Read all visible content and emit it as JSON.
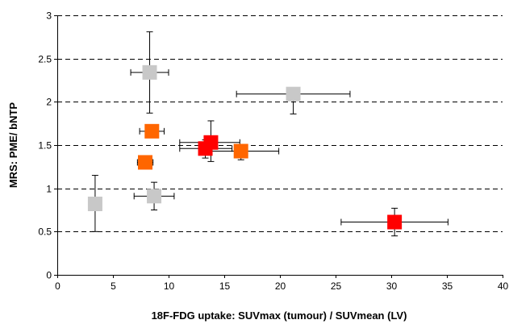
{
  "chart_data": {
    "type": "scatter",
    "xlabel": "18F-FDG uptake: SUVmax (tumour) / SUVmean (LV)",
    "ylabel": "MRS: PME/ bNTP",
    "xlim": [
      0,
      40
    ],
    "ylim": [
      0,
      3
    ],
    "x_ticks": [
      0,
      5,
      10,
      15,
      20,
      25,
      30,
      35,
      40
    ],
    "y_ticks": [
      0,
      0.5,
      1,
      1.5,
      2,
      2.5,
      3
    ],
    "grid": "horizontal-dashed",
    "colors": {
      "gray": "#c8c8c8",
      "orange": "#ff6600",
      "red": "#ff0000"
    },
    "points": [
      {
        "x": 3.4,
        "y": 0.82,
        "color": "gray",
        "xerr": [
          3.4,
          3.4
        ],
        "yerr": [
          0.5,
          1.15
        ]
      },
      {
        "x": 8.7,
        "y": 0.91,
        "color": "gray",
        "xerr": [
          6.9,
          10.5
        ],
        "yerr": [
          0.75,
          1.07
        ]
      },
      {
        "x": 8.3,
        "y": 2.34,
        "color": "gray",
        "xerr": [
          6.6,
          10.0
        ],
        "yerr": [
          1.87,
          2.81
        ]
      },
      {
        "x": 21.2,
        "y": 2.09,
        "color": "gray",
        "xerr": [
          16.1,
          26.3
        ],
        "yerr": [
          1.86,
          2.09
        ]
      },
      {
        "x": 7.9,
        "y": 1.3,
        "color": "orange",
        "xerr": [
          7.2,
          8.6
        ],
        "yerr": [
          1.3,
          1.3
        ]
      },
      {
        "x": 8.5,
        "y": 1.66,
        "color": "orange",
        "xerr": [
          7.4,
          9.6
        ],
        "yerr": [
          1.66,
          1.66
        ]
      },
      {
        "x": 16.5,
        "y": 1.43,
        "color": "orange",
        "xerr": [
          13.0,
          19.9
        ],
        "yerr": [
          1.33,
          1.43
        ]
      },
      {
        "x": 13.3,
        "y": 1.46,
        "color": "red",
        "xerr": [
          11.0,
          15.7
        ],
        "yerr": [
          1.35,
          1.56
        ]
      },
      {
        "x": 13.8,
        "y": 1.53,
        "color": "red",
        "xerr": [
          11.0,
          16.4
        ],
        "yerr": [
          1.31,
          1.78
        ]
      },
      {
        "x": 30.3,
        "y": 0.61,
        "color": "red",
        "xerr": [
          25.5,
          35.1
        ],
        "yerr": [
          0.45,
          0.77
        ]
      }
    ]
  }
}
